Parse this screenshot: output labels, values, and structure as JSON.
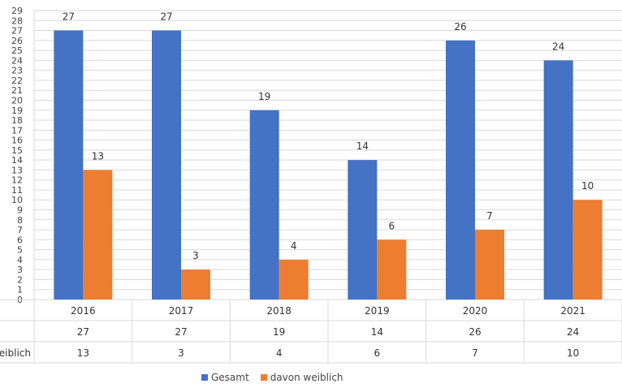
{
  "chart_data": {
    "type": "bar",
    "categories": [
      "2016",
      "2017",
      "2018",
      "2019",
      "2020",
      "2021"
    ],
    "series": [
      {
        "name": "Gesamt",
        "values": [
          27,
          27,
          19,
          14,
          26,
          24
        ],
        "color": "#4472C4"
      },
      {
        "name": "davon weiblich",
        "values": [
          13,
          3,
          4,
          6,
          7,
          10
        ],
        "color": "#ED7D31"
      }
    ],
    "ylim": [
      0,
      29
    ],
    "yticks": [
      0,
      1,
      2,
      3,
      4,
      5,
      6,
      7,
      8,
      9,
      10,
      11,
      12,
      13,
      14,
      15,
      16,
      17,
      18,
      19,
      20,
      21,
      22,
      23,
      24,
      25,
      26,
      27,
      28,
      29
    ],
    "grid": true,
    "data_table": {
      "rows": [
        {
          "label": "",
          "values": [
            "27",
            "27",
            "19",
            "14",
            "26",
            "24"
          ]
        },
        {
          "label": "eiblich",
          "values": [
            "13",
            "3",
            "4",
            "6",
            "7",
            "10"
          ]
        }
      ]
    },
    "legend": {
      "position": "bottom",
      "items": [
        {
          "label": "Gesamt",
          "color": "#4472C4"
        },
        {
          "label": "davon weiblich",
          "color": "#ED7D31"
        }
      ]
    }
  }
}
